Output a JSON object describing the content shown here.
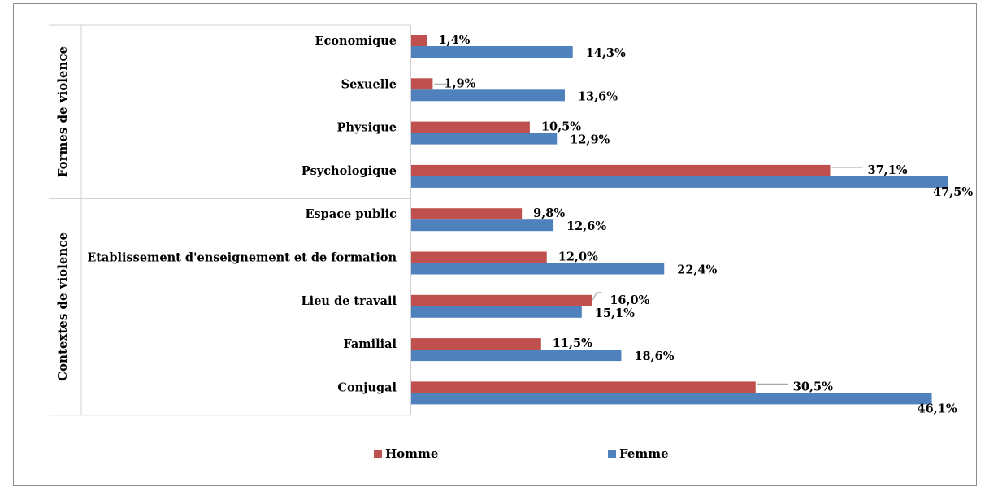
{
  "chart_data": {
    "type": "bar",
    "orientation": "horizontal",
    "groups": [
      {
        "label": "Formes de violence",
        "categories": [
          "Economique",
          "Sexuelle",
          "Physique",
          "Psychologique"
        ]
      },
      {
        "label": "Contextes de violence",
        "categories": [
          "Espace public",
          "Etablissement d'enseignement et de formation",
          "Lieu de travail",
          "Familial",
          "Conjugal"
        ]
      }
    ],
    "categories": [
      "Economique",
      "Sexuelle",
      "Physique",
      "Psychologique",
      "Espace public",
      "Etablissement d'enseignement et de formation",
      "Lieu de travail",
      "Familial",
      "Conjugal"
    ],
    "series": [
      {
        "name": "Homme",
        "color": "#c0504d",
        "values": [
          1.4,
          1.9,
          10.5,
          37.1,
          9.8,
          12.0,
          16.0,
          11.5,
          30.5
        ],
        "labels": [
          "1,4%",
          "1,9%",
          "10,5%",
          "37,1%",
          "9,8%",
          "12,0%",
          "16,0%",
          "11,5%",
          "30,5%"
        ]
      },
      {
        "name": "Femme",
        "color": "#4f81bd",
        "values": [
          14.3,
          13.6,
          12.9,
          47.5,
          12.6,
          22.4,
          15.1,
          18.6,
          46.1
        ],
        "labels": [
          "14,3%",
          "13,6%",
          "12,9%",
          "47,5%",
          "12,6%",
          "22,4%",
          "15,1%",
          "18,6%",
          "46,1%"
        ]
      }
    ],
    "xlim": [
      0,
      47.5
    ],
    "grid": false,
    "legend": "bottom"
  }
}
